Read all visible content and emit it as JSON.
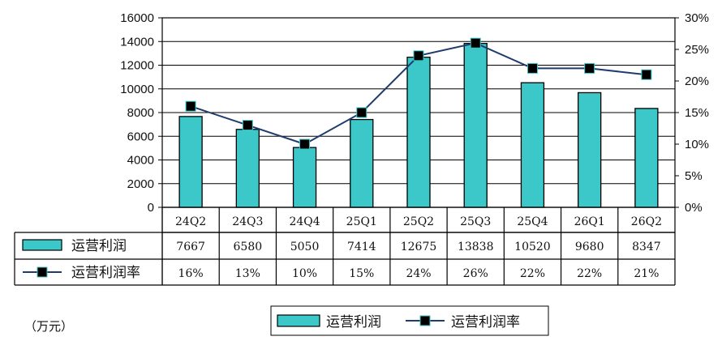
{
  "chart_data": {
    "type": "bar",
    "categories": [
      "24Q2",
      "24Q3",
      "24Q4",
      "25Q1",
      "25Q2",
      "25Q3",
      "25Q4",
      "26Q1",
      "26Q2"
    ],
    "series": [
      {
        "name": "运营利润",
        "type": "bar",
        "axis": "left",
        "color": "#3cc8c8",
        "values": [
          7667,
          6580,
          5050,
          7414,
          12675,
          13838,
          10520,
          9680,
          8347
        ]
      },
      {
        "name": "运营利润率",
        "type": "line",
        "axis": "right",
        "color": "#1f3c6e",
        "values": [
          16,
          13,
          10,
          15,
          24,
          26,
          22,
          22,
          21
        ],
        "value_labels": [
          "16%",
          "13%",
          "10%",
          "15%",
          "24%",
          "26%",
          "22%",
          "22%",
          "21%"
        ]
      }
    ],
    "ylim": [
      0,
      16000
    ],
    "y_ticks": [
      "0",
      "2000",
      "4000",
      "6000",
      "8000",
      "10000",
      "12000",
      "14000",
      "16000"
    ],
    "y2lim": [
      0,
      30
    ],
    "y2_ticks": [
      "0%",
      "5%",
      "10%",
      "15%",
      "20%",
      "25%",
      "30%"
    ],
    "grid": true,
    "legend_position": "bottom",
    "data_table": true,
    "unit_note": "（万元）"
  }
}
